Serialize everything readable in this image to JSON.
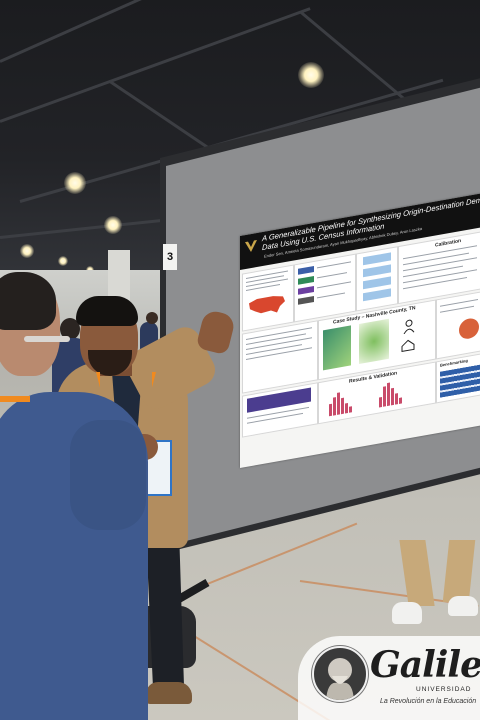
{
  "scene": {
    "board_number": "3",
    "poster": {
      "title_line1": "A Generalizable Pipeline for Synthesizing Origin-Destination Demand",
      "title_line2": "Data Using U.S. Census Information",
      "authors": "Ender Sen, Ameeta Somasundaram, Ayan Mukhopadhyay, Abhishek Dubey, Aron Laszka",
      "section_calibration": "Calibration",
      "section_case_study": "Case Study – Nashville County, TN",
      "section_results": "Results & Validation",
      "section_benchmarking": "Benchmarking"
    },
    "watermark": {
      "brand": "Galileo",
      "subtitle": "UNIVERSIDAD",
      "slogan": "La Revolución en la Educación"
    },
    "colors": {
      "poster_header": "#111111",
      "board": "#8d8e90",
      "jacket": "#b28d5f",
      "sweater": "#3f5a8f",
      "lanyard": "#f08a1f"
    }
  }
}
